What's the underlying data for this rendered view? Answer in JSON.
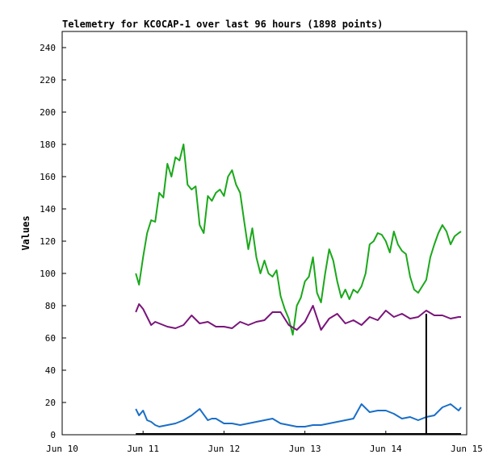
{
  "chart_data": {
    "type": "line",
    "title": "Telemetry for KC0CAP-1 over last 96 hours (1898 points)",
    "xlabel": "",
    "ylabel": "Values",
    "xlim": [
      "Jun 10",
      "Jun 15"
    ],
    "ylim": [
      0,
      250
    ],
    "x_tick_labels": [
      "Jun 10",
      "Jun 11",
      "Jun 12",
      "Jun 13",
      "Jun 14",
      "Jun 15"
    ],
    "y_ticks": [
      0,
      20,
      40,
      60,
      80,
      100,
      120,
      140,
      160,
      180,
      200,
      220,
      240
    ],
    "grid": false,
    "series": [
      {
        "color": "#1aa81a",
        "x": [
          10.91,
          10.95,
          11.0,
          11.05,
          11.1,
          11.15,
          11.2,
          11.25,
          11.3,
          11.35,
          11.4,
          11.45,
          11.5,
          11.55,
          11.6,
          11.65,
          11.7,
          11.75,
          11.8,
          11.85,
          11.9,
          11.95,
          12.0,
          12.05,
          12.1,
          12.15,
          12.2,
          12.25,
          12.3,
          12.35,
          12.4,
          12.45,
          12.5,
          12.55,
          12.6,
          12.65,
          12.7,
          12.75,
          12.8,
          12.85,
          12.9,
          12.95,
          13.0,
          13.05,
          13.1,
          13.15,
          13.2,
          13.25,
          13.3,
          13.35,
          13.4,
          13.45,
          13.5,
          13.55,
          13.6,
          13.65,
          13.7,
          13.75,
          13.8,
          13.85,
          13.9,
          13.95,
          14.0,
          14.05,
          14.1,
          14.15,
          14.2,
          14.25,
          14.3,
          14.35,
          14.4,
          14.45,
          14.5,
          14.55,
          14.6,
          14.65,
          14.7,
          14.75,
          14.8,
          14.85,
          14.9,
          14.93
        ],
        "y": [
          100,
          93,
          110,
          125,
          133,
          132,
          150,
          147,
          168,
          160,
          172,
          170,
          180,
          155,
          152,
          154,
          130,
          125,
          148,
          145,
          150,
          152,
          148,
          160,
          164,
          155,
          150,
          132,
          115,
          128,
          110,
          100,
          108,
          100,
          98,
          102,
          86,
          78,
          72,
          62,
          80,
          85,
          95,
          98,
          110,
          88,
          82,
          100,
          115,
          108,
          95,
          85,
          90,
          84,
          90,
          88,
          92,
          100,
          118,
          120,
          125,
          124,
          120,
          113,
          126,
          118,
          114,
          112,
          98,
          90,
          88,
          92,
          96,
          110,
          118,
          125,
          130,
          126,
          118,
          123,
          125,
          126
        ]
      },
      {
        "color": "#7a147a",
        "x": [
          10.91,
          10.95,
          11.0,
          11.05,
          11.1,
          11.15,
          11.2,
          11.3,
          11.4,
          11.5,
          11.6,
          11.7,
          11.8,
          11.9,
          12.0,
          12.1,
          12.2,
          12.3,
          12.4,
          12.5,
          12.6,
          12.7,
          12.8,
          12.9,
          13.0,
          13.1,
          13.2,
          13.3,
          13.4,
          13.5,
          13.6,
          13.7,
          13.8,
          13.9,
          14.0,
          14.1,
          14.2,
          14.3,
          14.4,
          14.5,
          14.6,
          14.7,
          14.8,
          14.9,
          14.93
        ],
        "y": [
          76,
          81,
          78,
          73,
          68,
          70,
          69,
          67,
          66,
          68,
          74,
          69,
          70,
          67,
          67,
          66,
          70,
          68,
          70,
          71,
          76,
          76,
          68,
          65,
          70,
          80,
          65,
          72,
          75,
          69,
          71,
          68,
          73,
          71,
          77,
          73,
          75,
          72,
          73,
          77,
          74,
          74,
          72,
          73,
          73
        ]
      },
      {
        "color": "#1a6ec8",
        "x": [
          10.91,
          10.95,
          11.0,
          11.05,
          11.1,
          11.15,
          11.2,
          11.3,
          11.4,
          11.5,
          11.6,
          11.7,
          11.8,
          11.85,
          11.9,
          12.0,
          12.1,
          12.2,
          12.3,
          12.4,
          12.5,
          12.6,
          12.7,
          12.8,
          12.9,
          13.0,
          13.1,
          13.2,
          13.3,
          13.4,
          13.5,
          13.6,
          13.7,
          13.8,
          13.9,
          14.0,
          14.1,
          14.2,
          14.3,
          14.4,
          14.5,
          14.6,
          14.7,
          14.8,
          14.9,
          14.93
        ],
        "y": [
          16,
          12,
          15,
          9,
          8,
          6,
          5,
          6,
          7,
          9,
          12,
          16,
          9,
          10,
          10,
          7,
          7,
          6,
          7,
          8,
          9,
          10,
          7,
          6,
          5,
          5,
          6,
          6,
          7,
          8,
          9,
          10,
          19,
          14,
          15,
          15,
          13,
          10,
          11,
          9,
          11,
          12,
          17,
          19,
          15,
          17
        ]
      }
    ],
    "vertical_marker": {
      "x": 14.5,
      "y_top": 75,
      "color": "#000000"
    }
  }
}
